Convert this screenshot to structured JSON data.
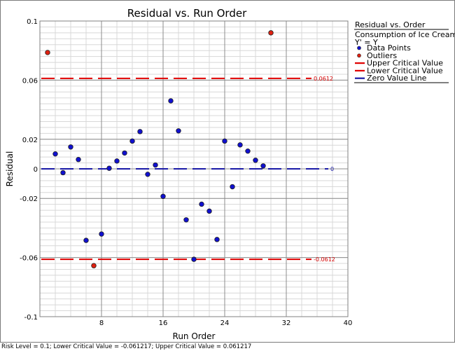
{
  "chart_data": {
    "type": "scatter",
    "title": "Residual vs. Run Order",
    "xlabel": "Run Order",
    "ylabel": "Residual",
    "xlim": [
      0,
      40
    ],
    "ylim": [
      -0.1,
      0.1
    ],
    "x_ticks": [
      8,
      16,
      24,
      32,
      40
    ],
    "y_ticks": [
      0.1,
      0.06,
      0.02,
      0,
      -0.02,
      -0.06,
      -0.1
    ],
    "x_tick_labels": [
      "8",
      "16",
      "24",
      "32",
      "40"
    ],
    "y_tick_labels": [
      "0.1",
      "0.06",
      "0.02",
      "0",
      "-0.02",
      "-0.06",
      "-0.1"
    ],
    "grid": true,
    "series": [
      {
        "name": "Data Points",
        "color": "#1010d0",
        "points": [
          {
            "x": 2,
            "y": 0.0101
          },
          {
            "x": 3,
            "y": -0.0026
          },
          {
            "x": 4,
            "y": 0.0148
          },
          {
            "x": 5,
            "y": 0.0063
          },
          {
            "x": 6,
            "y": -0.0484
          },
          {
            "x": 8,
            "y": -0.0441
          },
          {
            "x": 9,
            "y": 0.0004
          },
          {
            "x": 10,
            "y": 0.0053
          },
          {
            "x": 11,
            "y": 0.0107
          },
          {
            "x": 12,
            "y": 0.0188
          },
          {
            "x": 13,
            "y": 0.0252
          },
          {
            "x": 14,
            "y": -0.0037
          },
          {
            "x": 15,
            "y": 0.0026
          },
          {
            "x": 16,
            "y": -0.0186
          },
          {
            "x": 17,
            "y": 0.046
          },
          {
            "x": 18,
            "y": 0.0257
          },
          {
            "x": 19,
            "y": -0.0345
          },
          {
            "x": 21,
            "y": -0.0239
          },
          {
            "x": 22,
            "y": -0.0286
          },
          {
            "x": 23,
            "y": -0.0478
          },
          {
            "x": 24,
            "y": 0.0188
          },
          {
            "x": 25,
            "y": -0.0121
          },
          {
            "x": 26,
            "y": 0.0162
          },
          {
            "x": 27,
            "y": 0.012
          },
          {
            "x": 28,
            "y": 0.0058
          },
          {
            "x": 29,
            "y": 0.002
          },
          {
            "x": 20,
            "y": -0.0612
          }
        ]
      },
      {
        "name": "Outliers",
        "color": "#e02010",
        "points": [
          {
            "x": 1,
            "y": 0.0787
          },
          {
            "x": 7,
            "y": -0.0655
          },
          {
            "x": 30,
            "y": 0.092
          }
        ]
      }
    ],
    "reference_lines": [
      {
        "name": "Upper Critical Value",
        "y": 0.0612,
        "color": "#e00000",
        "label": "0.0612"
      },
      {
        "name": "Lower Critical Value",
        "y": -0.0612,
        "color": "#e00000",
        "label": "-0.0612"
      },
      {
        "name": "Zero Value Line",
        "y": 0,
        "color": "#1a1aa6",
        "label": "0"
      }
    ],
    "legend": {
      "position": "right",
      "heading": "Residual vs. Order",
      "subtitle_line1": "Consumption of Ice Cream",
      "subtitle_line2": "Y' = Y",
      "items": [
        {
          "label": "Data Points",
          "kind": "dot",
          "color": "#1010d0"
        },
        {
          "label": "Outliers",
          "kind": "dot",
          "color": "#e02010"
        },
        {
          "label": "Upper Critical Value",
          "kind": "line",
          "color": "#e00000"
        },
        {
          "label": "Lower Critical Value",
          "kind": "line",
          "color": "#e00000"
        },
        {
          "label": "Zero Value Line",
          "kind": "line",
          "color": "#1a1aa6"
        }
      ]
    }
  },
  "status_text": "Risk Level = 0.1; Lower Critical Value = -0.061217; Upper Critical Value = 0.061217"
}
